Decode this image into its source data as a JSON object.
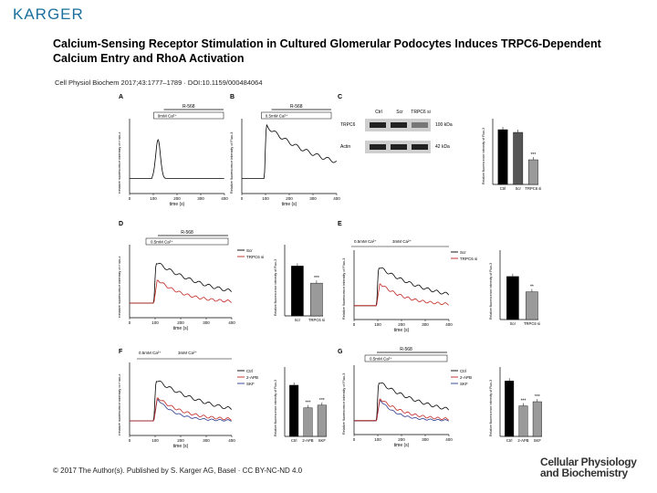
{
  "header": {
    "logo": "KARGER",
    "title": "Calcium-Sensing Receptor Stimulation in Cultured Glomerular Podocytes Induces TRPC6-Dependent Calcium Entry and RhoA Activation",
    "citation": "Cell Physiol Biochem 2017;43:1777–1789 · DOI:10.1159/000484064"
  },
  "footer": {
    "copyright": "© 2017 The Author(s). Published by S. Karger AG, Basel · CC BY-NC-ND 4.0",
    "journal_line1": "Cellular Physiology",
    "journal_line2": "and Biochemistry"
  },
  "figure": {
    "panel_letters": [
      "A",
      "B",
      "C",
      "D",
      "E",
      "F",
      "G"
    ],
    "time_axis_label": "time (s)",
    "time_ticks": [
      "0",
      "100",
      "200",
      "300",
      "400"
    ],
    "fluo_ylabel": "Relative fluorescence intensity of Fluo-3",
    "blot": {
      "lanes": [
        "Ctrl",
        "Scr",
        "TRPC6 si"
      ],
      "rows": [
        {
          "protein": "TRPC6",
          "size": "100 kDa"
        },
        {
          "protein": "Actin",
          "size": "42 kDa"
        }
      ]
    },
    "panels": {
      "A": {
        "stimulus": "R-568",
        "ca": "0mM Ca²⁺"
      },
      "B": {
        "stimulus": "R-568",
        "ca": "0.5mM Ca²⁺"
      },
      "D": {
        "stimulus": "R-568",
        "ca": "0.5mM Ca²⁺",
        "legend": [
          "Scr",
          "TRPC6 si"
        ]
      },
      "E": {
        "ca1": "0.5mM Ca²⁺",
        "ca2": "3mM Ca²⁺",
        "legend": [
          "Scr",
          "TRPC6 si"
        ]
      },
      "F": {
        "ca1": "0.5mM Ca²⁺",
        "ca2": "3mM Ca²⁺",
        "legend": [
          "Ctrl",
          "2-APB",
          "SKF"
        ]
      },
      "G": {
        "stimulus": "R-568",
        "ca": "0.5mM Ca²⁺",
        "legend": [
          "Ctrl",
          "2-APB",
          "SKF"
        ]
      }
    }
  },
  "chart_data": [
    {
      "panel": "C",
      "type": "bar",
      "categories": [
        "Ctrl",
        "Scr",
        "TRPC6 si"
      ],
      "values": [
        1.0,
        0.95,
        0.45
      ],
      "ylim": [
        0,
        1.2
      ],
      "annotations": [
        "",
        "",
        "***"
      ]
    },
    {
      "panel": "D",
      "type": "bar",
      "categories": [
        "Scr",
        "TRPC6 si"
      ],
      "values": [
        3.5,
        2.3
      ],
      "ylim": [
        0,
        5
      ],
      "annotations": [
        "",
        "***"
      ]
    },
    {
      "panel": "E",
      "type": "bar",
      "categories": [
        "Scr",
        "TRPC6 si"
      ],
      "values": [
        3.1,
        2.0
      ],
      "ylim": [
        0,
        5
      ],
      "annotations": [
        "",
        "**"
      ]
    },
    {
      "panel": "F",
      "type": "bar",
      "categories": [
        "Ctrl",
        "2-APB",
        "SKF"
      ],
      "values": [
        5.9,
        3.3,
        3.6
      ],
      "ylim": [
        0,
        8
      ],
      "annotations": [
        "",
        "***",
        "***"
      ]
    },
    {
      "panel": "G",
      "type": "bar",
      "categories": [
        "Ctrl",
        "2-APB",
        "SKF"
      ],
      "values": [
        4.0,
        2.2,
        2.5
      ],
      "ylim": [
        0,
        5
      ],
      "annotations": [
        "",
        "***",
        "***"
      ]
    }
  ],
  "colors": {
    "logo": "#1c6f9e",
    "control": "#000000",
    "knockdown": "#c0251d",
    "inhibitor": "#2a3a8f",
    "bar_grey": "#9a9a9a"
  }
}
